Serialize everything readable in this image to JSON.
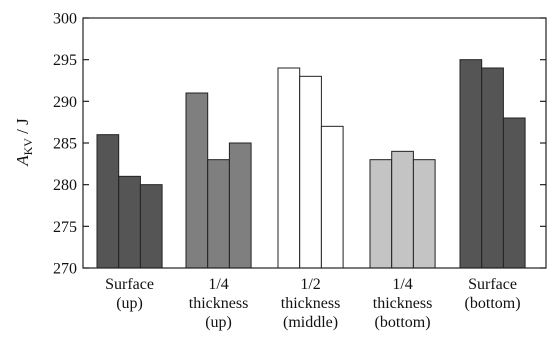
{
  "chart_data": {
    "type": "bar",
    "ylabel": {
      "symbol": "A",
      "subscript": "KV",
      "unit": " / J"
    },
    "ylim": [
      270,
      300
    ],
    "yticks": [
      270,
      275,
      280,
      285,
      290,
      295,
      300
    ],
    "grid": false,
    "legend": "none",
    "groups": [
      {
        "label_lines": [
          "Surface",
          "(up)"
        ],
        "fill": "#555555",
        "values": [
          286,
          281,
          280
        ]
      },
      {
        "label_lines": [
          "1/4",
          "thickness",
          "(up)"
        ],
        "fill": "#7f7f7f",
        "values": [
          291,
          283,
          285
        ]
      },
      {
        "label_lines": [
          "1/2",
          "thickness",
          "(middle)"
        ],
        "fill": "#ffffff",
        "values": [
          294,
          293,
          287
        ]
      },
      {
        "label_lines": [
          "1/4",
          "thickness",
          "(bottom)"
        ],
        "fill": "#c4c4c4",
        "values": [
          283,
          284,
          283
        ]
      },
      {
        "label_lines": [
          "Surface",
          "(bottom)"
        ],
        "fill": "#555555",
        "values": [
          295,
          294,
          288
        ]
      }
    ]
  }
}
